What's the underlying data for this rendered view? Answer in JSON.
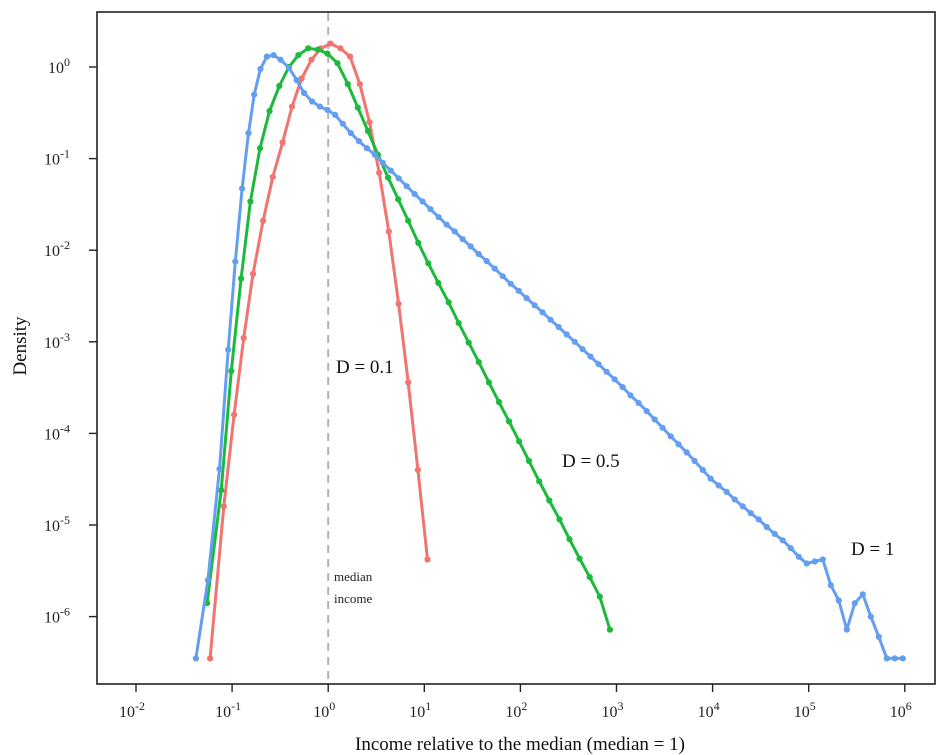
{
  "chart_data": {
    "type": "line",
    "title": "",
    "xlabel": "Income relative to the median (median = 1)",
    "ylabel": "Density",
    "x_scale": "log",
    "y_scale": "log",
    "xlim": [
      0.01,
      1000000
    ],
    "ylim": [
      2.5e-07,
      5
    ],
    "grid": false,
    "x_ticks": [
      {
        "value": 0.01,
        "base": "10",
        "exp": "-2"
      },
      {
        "value": 0.1,
        "base": "10",
        "exp": "-1"
      },
      {
        "value": 1,
        "base": "10",
        "exp": "0"
      },
      {
        "value": 10,
        "base": "10",
        "exp": "1"
      },
      {
        "value": 100,
        "base": "10",
        "exp": "2"
      },
      {
        "value": 1000,
        "base": "10",
        "exp": "3"
      },
      {
        "value": 10000,
        "base": "10",
        "exp": "4"
      },
      {
        "value": 100000,
        "base": "10",
        "exp": "5"
      },
      {
        "value": 1000000,
        "base": "10",
        "exp": "6"
      }
    ],
    "y_ticks": [
      {
        "value": 1,
        "base": "10",
        "exp": "0"
      },
      {
        "value": 0.1,
        "base": "10",
        "exp": "-1"
      },
      {
        "value": 0.01,
        "base": "10",
        "exp": "-2"
      },
      {
        "value": 0.001,
        "base": "10",
        "exp": "-3"
      },
      {
        "value": 0.0001,
        "base": "10",
        "exp": "-4"
      },
      {
        "value": 1e-05,
        "base": "10",
        "exp": "-5"
      },
      {
        "value": 1e-06,
        "base": "10",
        "exp": "-6"
      }
    ],
    "reference_line": {
      "x": 1,
      "style": "dashed",
      "color": "#b3b3b3"
    },
    "series": [
      {
        "name": "D = 0.1",
        "color": "#f07470",
        "x": [
          0.059,
          0.082,
          0.105,
          0.132,
          0.165,
          0.21,
          0.265,
          0.335,
          0.42,
          0.53,
          0.67,
          0.84,
          1.06,
          1.34,
          1.69,
          2.13,
          2.69,
          3.39,
          4.27,
          5.4,
          6.8,
          8.58,
          10.8,
          13.6
        ],
        "y": [
          3.5e-07,
          1.6e-05,
          0.00016,
          0.0011,
          0.0055,
          0.021,
          0.063,
          0.15,
          0.37,
          0.75,
          1.2,
          1.6,
          1.8,
          1.6,
          1.3,
          0.65,
          0.25,
          0.07,
          0.016,
          0.0026,
          0.00036,
          4e-05,
          4.2e-06,
          0
        ]
      },
      {
        "name": "D = 0.5",
        "color": "#1cba3c",
        "x": [
          0.055,
          0.077,
          0.098,
          0.124,
          0.155,
          0.195,
          0.245,
          0.31,
          0.39,
          0.49,
          0.62,
          0.78,
          0.98,
          1.25,
          1.6,
          2.03,
          2.59,
          3.3,
          4.2,
          5.35,
          6.8,
          8.67,
          11,
          14,
          17.9,
          22.8,
          29,
          36.9,
          47,
          59.8,
          76.2,
          97,
          123,
          157,
          200,
          255,
          324,
          413,
          526,
          670,
          853
        ],
        "y": [
          1.4e-06,
          2.4e-05,
          0.00048,
          0.0049,
          0.034,
          0.13,
          0.33,
          0.62,
          1.0,
          1.35,
          1.6,
          1.55,
          1.4,
          1.1,
          0.65,
          0.36,
          0.2,
          0.11,
          0.062,
          0.036,
          0.021,
          0.012,
          0.0072,
          0.0044,
          0.0027,
          0.0016,
          0.00098,
          0.0006,
          0.00036,
          0.00022,
          0.000135,
          8.2e-05,
          5e-05,
          3e-05,
          1.85e-05,
          1.15e-05,
          7e-06,
          4.3e-06,
          2.7e-06,
          1.65e-06,
          7.2e-07
        ]
      },
      {
        "name": "D = 1",
        "color": "#649ef0",
        "x": [
          0.042,
          0.056,
          0.074,
          0.091,
          0.108,
          0.127,
          0.148,
          0.17,
          0.197,
          0.23,
          0.27,
          0.32,
          0.39,
          0.47,
          0.56,
          0.68,
          0.82,
          0.98,
          1.18,
          1.42,
          1.72,
          2.09,
          2.53,
          3.06,
          3.7,
          4.48,
          5.42,
          6.56,
          7.94,
          9.6,
          11.6,
          14.1,
          17.1,
          20.7,
          25.1,
          30.4,
          36.8,
          44.6,
          54,
          65.4,
          79.2,
          96,
          116,
          141,
          170,
          206,
          250,
          303,
          367,
          444,
          538,
          651,
          789,
          955,
          1157,
          1400,
          1700,
          2060,
          2495,
          3020,
          3660,
          4430,
          5370,
          6500,
          7880,
          9550,
          11570,
          14020,
          16990,
          20580,
          24930,
          30200,
          36580,
          44320,
          53690,
          65040,
          78800,
          95460,
          115600,
          140100,
          169700,
          205600,
          249100,
          301800,
          365700,
          443000,
          536700,
          650200,
          787700,
          954200
        ],
        "y": [
          3.5e-07,
          2.5e-06,
          4.1e-05,
          0.00082,
          0.0075,
          0.047,
          0.19,
          0.5,
          0.95,
          1.3,
          1.35,
          1.2,
          0.98,
          0.72,
          0.52,
          0.42,
          0.37,
          0.34,
          0.3,
          0.24,
          0.19,
          0.155,
          0.13,
          0.11,
          0.09,
          0.074,
          0.061,
          0.05,
          0.041,
          0.034,
          0.028,
          0.023,
          0.019,
          0.016,
          0.0132,
          0.011,
          0.0091,
          0.0076,
          0.0063,
          0.0052,
          0.0043,
          0.0036,
          0.003,
          0.0025,
          0.0021,
          0.00174,
          0.00145,
          0.0012,
          0.001,
          0.00083,
          0.00069,
          0.00057,
          0.00047,
          0.00039,
          0.00032,
          0.00026,
          0.000215,
          0.000175,
          0.000142,
          0.000115,
          9.3e-05,
          7.6e-05,
          6.2e-05,
          5e-05,
          4e-05,
          3.2e-05,
          2.7e-05,
          2.3e-05,
          1.9e-05,
          1.6e-05,
          1.35e-05,
          1.15e-05,
          9.5e-06,
          8e-06,
          6.8e-06,
          5.6e-06,
          4.5e-06,
          3.8e-06,
          4e-06,
          4.2e-06,
          2.2e-06,
          1.5e-06,
          7.2e-07,
          1.4e-06,
          1.75e-06,
          1e-06,
          6e-07,
          3.5e-07,
          3.5e-07,
          3.5e-07
        ]
      }
    ],
    "annotations": [
      {
        "text": "D = 0.1",
        "series": "D = 0.1"
      },
      {
        "text": "D = 0.5",
        "series": "D = 0.5"
      },
      {
        "text": "D = 1",
        "series": "D = 1"
      },
      {
        "text": "median",
        "line": 1
      },
      {
        "text": "income",
        "line": 2
      }
    ]
  }
}
